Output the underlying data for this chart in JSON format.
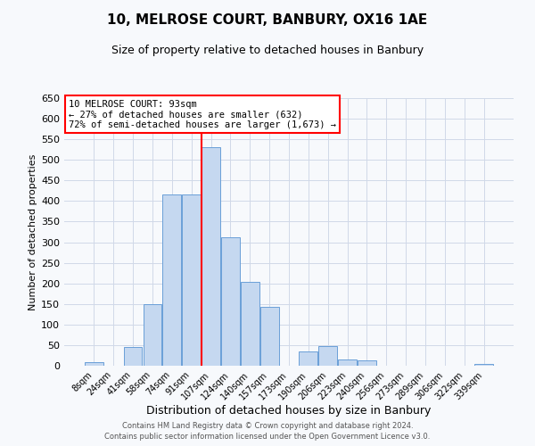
{
  "title": "10, MELROSE COURT, BANBURY, OX16 1AE",
  "subtitle": "Size of property relative to detached houses in Banbury",
  "xlabel": "Distribution of detached houses by size in Banbury",
  "ylabel": "Number of detached properties",
  "bar_labels": [
    "8sqm",
    "24sqm",
    "41sqm",
    "58sqm",
    "74sqm",
    "91sqm",
    "107sqm",
    "124sqm",
    "140sqm",
    "157sqm",
    "173sqm",
    "190sqm",
    "206sqm",
    "223sqm",
    "240sqm",
    "256sqm",
    "273sqm",
    "289sqm",
    "306sqm",
    "322sqm",
    "339sqm"
  ],
  "bar_values": [
    8,
    0,
    45,
    150,
    415,
    415,
    530,
    313,
    204,
    143,
    0,
    35,
    48,
    15,
    12,
    0,
    0,
    0,
    0,
    0,
    5
  ],
  "bar_color": "#c5d8f0",
  "bar_edgecolor": "#6a9fd8",
  "property_line_idx": 5,
  "property_line_color": "red",
  "annotation_line1": "10 MELROSE COURT: 93sqm",
  "annotation_line2": "← 27% of detached houses are smaller (632)",
  "annotation_line3": "72% of semi-detached houses are larger (1,673) →",
  "annotation_box_color": "red",
  "ylim": [
    0,
    650
  ],
  "yticks": [
    0,
    50,
    100,
    150,
    200,
    250,
    300,
    350,
    400,
    450,
    500,
    550,
    600,
    650
  ],
  "footer1": "Contains HM Land Registry data © Crown copyright and database right 2024.",
  "footer2": "Contains public sector information licensed under the Open Government Licence v3.0.",
  "bg_color": "#f7f9fc",
  "grid_color": "#d0d8e8",
  "title_fontsize": 11,
  "subtitle_fontsize": 9,
  "ylabel_fontsize": 8,
  "xlabel_fontsize": 9,
  "tick_fontsize": 8,
  "footer_fontsize": 6
}
